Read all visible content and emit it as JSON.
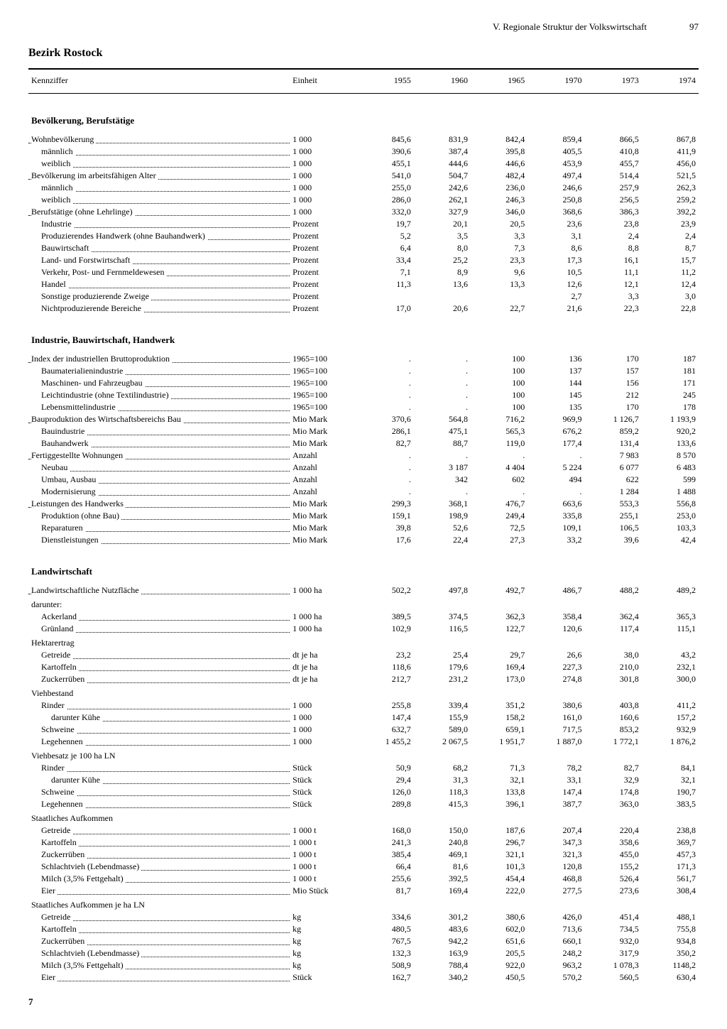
{
  "header": {
    "chapter": "V. Regionale Struktur der Volkswirtschaft",
    "page": "97"
  },
  "title": "Bezirk Rostock",
  "columns": {
    "label": "Kennziffer",
    "unit": "Einheit",
    "years": [
      "1955",
      "1960",
      "1965",
      "1970",
      "1973",
      "1974"
    ]
  },
  "footer": "7",
  "rows": [
    {
      "type": "section",
      "label": "Bevölkerung, Berufstätige"
    },
    {
      "indent": 0,
      "label": "Wohnbevölkerung",
      "unit": "1 000",
      "v": [
        "845,6",
        "831,9",
        "842,4",
        "859,4",
        "866,5",
        "867,8"
      ]
    },
    {
      "indent": 1,
      "label": "männlich",
      "unit": "1 000",
      "v": [
        "390,6",
        "387,4",
        "395,8",
        "405,5",
        "410,8",
        "411,9"
      ]
    },
    {
      "indent": 1,
      "label": "weiblich",
      "unit": "1 000",
      "v": [
        "455,1",
        "444,6",
        "446,6",
        "453,9",
        "455,7",
        "456,0"
      ]
    },
    {
      "indent": 0,
      "label": "Bevölkerung im arbeitsfähigen Alter",
      "unit": "1 000",
      "v": [
        "541,0",
        "504,7",
        "482,4",
        "497,4",
        "514,4",
        "521,5"
      ]
    },
    {
      "indent": 1,
      "label": "männlich",
      "unit": "1 000",
      "v": [
        "255,0",
        "242,6",
        "236,0",
        "246,6",
        "257,9",
        "262,3"
      ]
    },
    {
      "indent": 1,
      "label": "weiblich",
      "unit": "1 000",
      "v": [
        "286,0",
        "262,1",
        "246,3",
        "250,8",
        "256,5",
        "259,2"
      ]
    },
    {
      "indent": 0,
      "label": "Berufstätige (ohne Lehrlinge)",
      "unit": "1 000",
      "v": [
        "332,0",
        "327,9",
        "346,0",
        "368,6",
        "386,3",
        "392,2"
      ]
    },
    {
      "indent": 1,
      "label": "Industrie",
      "unit": "Prozent",
      "v": [
        "19,7",
        "20,1",
        "20,5",
        "23,6",
        "23,8",
        "23,9"
      ]
    },
    {
      "indent": 1,
      "label": "Produzierendes Handwerk (ohne Bauhandwerk)",
      "unit": "Prozent",
      "v": [
        "5,2",
        "3,5",
        "3,3",
        "3,1",
        "2,4",
        "2,4"
      ]
    },
    {
      "indent": 1,
      "label": "Bauwirtschaft",
      "unit": "Prozent",
      "v": [
        "6,4",
        "8,0",
        "7,3",
        "8,6",
        "8,8",
        "8,7"
      ]
    },
    {
      "indent": 1,
      "label": "Land- und Forstwirtschaft",
      "unit": "Prozent",
      "v": [
        "33,4",
        "25,2",
        "23,3",
        "17,3",
        "16,1",
        "15,7"
      ]
    },
    {
      "indent": 1,
      "label": "Verkehr, Post- und Fernmeldewesen",
      "unit": "Prozent",
      "v": [
        "7,1",
        "8,9",
        "9,6",
        "10,5",
        "11,1",
        "11,2"
      ]
    },
    {
      "indent": 1,
      "label": "Handel",
      "unit": "Prozent",
      "v": [
        "11,3",
        "13,6",
        "13,3",
        "12,6",
        "12,1",
        "12,4"
      ]
    },
    {
      "indent": 1,
      "label": "Sonstige produzierende Zweige",
      "unit": "Prozent",
      "v": [
        "",
        "",
        "",
        "2,7",
        "3,3",
        "3,0"
      ]
    },
    {
      "indent": 1,
      "label": "Nichtproduzierende Bereiche",
      "unit": "Prozent",
      "v": [
        "17,0",
        "20,6",
        "22,7",
        "21,6",
        "22,3",
        "22,8"
      ]
    },
    {
      "type": "section",
      "label": "Industrie, Bauwirtschaft, Handwerk"
    },
    {
      "indent": 0,
      "label": "Index der industriellen Bruttoproduktion",
      "unit": "1965=100",
      "v": [
        ".",
        ".",
        "100",
        "136",
        "170",
        "187"
      ]
    },
    {
      "indent": 1,
      "label": "Baumaterialienindustrie",
      "unit": "1965=100",
      "v": [
        ".",
        ".",
        "100",
        "137",
        "157",
        "181"
      ]
    },
    {
      "indent": 1,
      "label": "Maschinen- und Fahrzeugbau",
      "unit": "1965=100",
      "v": [
        ".",
        ".",
        "100",
        "144",
        "156",
        "171"
      ]
    },
    {
      "indent": 1,
      "label": "Leichtindustrie (ohne Textilindustrie)",
      "unit": "1965=100",
      "v": [
        ".",
        ".",
        "100",
        "145",
        "212",
        "245"
      ]
    },
    {
      "indent": 1,
      "label": "Lebensmittelindustrie",
      "unit": "1965=100",
      "v": [
        ".",
        ".",
        "100",
        "135",
        "170",
        "178"
      ]
    },
    {
      "indent": 0,
      "label": "Bauproduktion des Wirtschaftsbereichs Bau",
      "unit": "Mio Mark",
      "v": [
        "370,6",
        "564,8",
        "716,2",
        "969,9",
        "1 126,7",
        "1 193,9"
      ]
    },
    {
      "indent": 1,
      "label": "Bauindustrie",
      "unit": "Mio Mark",
      "v": [
        "286,1",
        "475,1",
        "565,3",
        "676,2",
        "859,2",
        "920,2"
      ]
    },
    {
      "indent": 1,
      "label": "Bauhandwerk",
      "unit": "Mio Mark",
      "v": [
        "82,7",
        "88,7",
        "119,0",
        "177,4",
        "131,4",
        "133,6"
      ]
    },
    {
      "indent": 0,
      "label": "Fertiggestellte Wohnungen",
      "unit": "Anzahl",
      "v": [
        ".",
        ".",
        ".",
        ".",
        "7 983",
        "8 570"
      ]
    },
    {
      "indent": 1,
      "label": "Neubau",
      "unit": "Anzahl",
      "v": [
        ".",
        "3 187",
        "4 404",
        "5 224",
        "6 077",
        "6 483"
      ]
    },
    {
      "indent": 1,
      "label": "Umbau, Ausbau",
      "unit": "Anzahl",
      "v": [
        ".",
        "342",
        "602",
        "494",
        "622",
        "599"
      ]
    },
    {
      "indent": 1,
      "label": "Modernisierung",
      "unit": "Anzahl",
      "v": [
        ".",
        ".",
        ".",
        ".",
        "1 284",
        "1 488"
      ]
    },
    {
      "indent": 0,
      "label": "Leistungen des Handwerks",
      "unit": "Mio Mark",
      "v": [
        "299,3",
        "368,1",
        "476,7",
        "663,6",
        "553,3",
        "556,8"
      ]
    },
    {
      "indent": 1,
      "label": "Produktion (ohne Bau)",
      "unit": "Mio Mark",
      "v": [
        "159,1",
        "198,9",
        "249,4",
        "335,8",
        "255,1",
        "253,0"
      ]
    },
    {
      "indent": 1,
      "label": "Reparaturen",
      "unit": "Mio Mark",
      "v": [
        "39,8",
        "52,6",
        "72,5",
        "109,1",
        "106,5",
        "103,3"
      ]
    },
    {
      "indent": 1,
      "label": "Dienstleistungen",
      "unit": "Mio Mark",
      "v": [
        "17,6",
        "22,4",
        "27,3",
        "33,2",
        "39,6",
        "42,4"
      ]
    },
    {
      "type": "section",
      "label": "Landwirtschaft"
    },
    {
      "indent": 0,
      "label": "Landwirtschaftliche Nutzfläche",
      "unit": "1 000 ha",
      "v": [
        "502,2",
        "497,8",
        "492,7",
        "486,7",
        "488,2",
        "489,2"
      ]
    },
    {
      "type": "subhead",
      "indent": 0,
      "label": "darunter:"
    },
    {
      "indent": 1,
      "label": "Ackerland",
      "unit": "1 000 ha",
      "v": [
        "389,5",
        "374,5",
        "362,3",
        "358,4",
        "362,4",
        "365,3"
      ]
    },
    {
      "indent": 1,
      "label": "Grünland",
      "unit": "1 000 ha",
      "v": [
        "102,9",
        "116,5",
        "122,7",
        "120,6",
        "117,4",
        "115,1"
      ]
    },
    {
      "type": "subhead",
      "indent": 0,
      "label": "Hektarertrag"
    },
    {
      "indent": 1,
      "label": "Getreide",
      "unit": "dt je ha",
      "v": [
        "23,2",
        "25,4",
        "29,7",
        "26,6",
        "38,0",
        "43,2"
      ]
    },
    {
      "indent": 1,
      "label": "Kartoffeln",
      "unit": "dt je ha",
      "v": [
        "118,6",
        "179,6",
        "169,4",
        "227,3",
        "210,0",
        "232,1"
      ]
    },
    {
      "indent": 1,
      "label": "Zuckerrüben",
      "unit": "dt je ha",
      "v": [
        "212,7",
        "231,2",
        "173,0",
        "274,8",
        "301,8",
        "300,0"
      ]
    },
    {
      "type": "subhead",
      "indent": 0,
      "label": "Viehbestand"
    },
    {
      "indent": 1,
      "label": "Rinder",
      "unit": "1 000",
      "v": [
        "255,8",
        "339,4",
        "351,2",
        "380,6",
        "403,8",
        "411,2"
      ]
    },
    {
      "indent": 2,
      "label": "darunter Kühe",
      "unit": "1 000",
      "v": [
        "147,4",
        "155,9",
        "158,2",
        "161,0",
        "160,6",
        "157,2"
      ]
    },
    {
      "indent": 1,
      "label": "Schweine",
      "unit": "1 000",
      "v": [
        "632,7",
        "589,0",
        "659,1",
        "717,5",
        "853,2",
        "932,9"
      ]
    },
    {
      "indent": 1,
      "label": "Legehennen",
      "unit": "1 000",
      "v": [
        "1 455,2",
        "2 067,5",
        "1 951,7",
        "1 887,0",
        "1 772,1",
        "1 876,2"
      ]
    },
    {
      "type": "subhead",
      "indent": 0,
      "label": "Viehbesatz je 100 ha LN"
    },
    {
      "indent": 1,
      "label": "Rinder",
      "unit": "Stück",
      "v": [
        "50,9",
        "68,2",
        "71,3",
        "78,2",
        "82,7",
        "84,1"
      ]
    },
    {
      "indent": 2,
      "label": "darunter Kühe",
      "unit": "Stück",
      "v": [
        "29,4",
        "31,3",
        "32,1",
        "33,1",
        "32,9",
        "32,1"
      ]
    },
    {
      "indent": 1,
      "label": "Schweine",
      "unit": "Stück",
      "v": [
        "126,0",
        "118,3",
        "133,8",
        "147,4",
        "174,8",
        "190,7"
      ]
    },
    {
      "indent": 1,
      "label": "Legehennen",
      "unit": "Stück",
      "v": [
        "289,8",
        "415,3",
        "396,1",
        "387,7",
        "363,0",
        "383,5"
      ]
    },
    {
      "type": "subhead",
      "indent": 0,
      "label": "Staatliches Aufkommen"
    },
    {
      "indent": 1,
      "label": "Getreide",
      "unit": "1 000 t",
      "v": [
        "168,0",
        "150,0",
        "187,6",
        "207,4",
        "220,4",
        "238,8"
      ]
    },
    {
      "indent": 1,
      "label": "Kartoffeln",
      "unit": "1 000 t",
      "v": [
        "241,3",
        "240,8",
        "296,7",
        "347,3",
        "358,6",
        "369,7"
      ]
    },
    {
      "indent": 1,
      "label": "Zuckerrüben",
      "unit": "1 000 t",
      "v": [
        "385,4",
        "469,1",
        "321,1",
        "321,3",
        "455,0",
        "457,3"
      ]
    },
    {
      "indent": 1,
      "label": "Schlachtvieh (Lebendmasse)",
      "unit": "1 000 t",
      "v": [
        "66,4",
        "81,6",
        "101,3",
        "120,8",
        "155,2",
        "171,3"
      ]
    },
    {
      "indent": 1,
      "label": "Milch (3,5% Fettgehalt)",
      "unit": "1 000 t",
      "v": [
        "255,6",
        "392,5",
        "454,4",
        "468,8",
        "526,4",
        "561,7"
      ]
    },
    {
      "indent": 1,
      "label": "Eier",
      "unit": "Mio Stück",
      "v": [
        "81,7",
        "169,4",
        "222,0",
        "277,5",
        "273,6",
        "308,4"
      ]
    },
    {
      "type": "subhead",
      "indent": 0,
      "label": "Staatliches Aufkommen je ha LN"
    },
    {
      "indent": 1,
      "label": "Getreide",
      "unit": "kg",
      "v": [
        "334,6",
        "301,2",
        "380,6",
        "426,0",
        "451,4",
        "488,1"
      ]
    },
    {
      "indent": 1,
      "label": "Kartoffeln",
      "unit": "kg",
      "v": [
        "480,5",
        "483,6",
        "602,0",
        "713,6",
        "734,5",
        "755,8"
      ]
    },
    {
      "indent": 1,
      "label": "Zuckerrüben",
      "unit": "kg",
      "v": [
        "767,5",
        "942,2",
        "651,6",
        "660,1",
        "932,0",
        "934,8"
      ]
    },
    {
      "indent": 1,
      "label": "Schlachtvieh (Lebendmasse)",
      "unit": "kg",
      "v": [
        "132,3",
        "163,9",
        "205,5",
        "248,2",
        "317,9",
        "350,2"
      ]
    },
    {
      "indent": 1,
      "label": "Milch (3,5% Fettgehalt)",
      "unit": "kg",
      "v": [
        "508,9",
        "788,4",
        "922,0",
        "963,2",
        "1 078,3",
        "1148,2"
      ]
    },
    {
      "indent": 1,
      "label": "Eier",
      "unit": "Stück",
      "v": [
        "162,7",
        "340,2",
        "450,5",
        "570,2",
        "560,5",
        "630,4"
      ]
    }
  ]
}
